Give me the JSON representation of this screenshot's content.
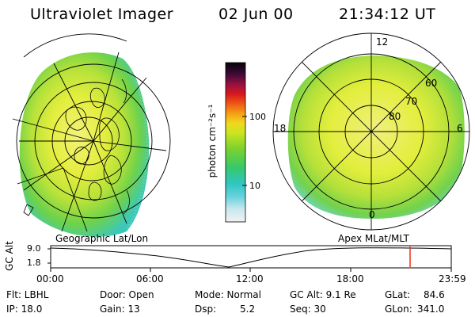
{
  "header": {
    "title": "Ultraviolet Imager",
    "date": "02 Jun 00",
    "time": "21:34:12 UT"
  },
  "colorbar": {
    "unit_label": "photon cm⁻²s⁻¹",
    "tick_labels": [
      "100",
      "10"
    ]
  },
  "left_panel": {
    "caption": "Geographic Lat/Lon"
  },
  "right_panel": {
    "caption": "Apex MLat/MLT",
    "mlt_labels": [
      "12",
      "18",
      "6",
      "0"
    ],
    "mlat_labels": [
      "60",
      "70",
      "80"
    ]
  },
  "altitude_plot": {
    "ylabel": "GC Alt",
    "y_ticks": [
      "9.0",
      "1.8"
    ],
    "x_ticks": [
      "00:00",
      "06:00",
      "12:00",
      "18:00",
      "23:59"
    ],
    "marker_time": "21:34",
    "marker_color": "#e8331f"
  },
  "info": {
    "flt": "Flt: LBHL",
    "ip": "IP: 18.0",
    "door": "Door: Open",
    "gain": "Gain: 13",
    "mode": "Mode: Normal",
    "dsp_label": "Dsp:",
    "dsp_value": "5.2",
    "gc_alt": "GC Alt: 9.1 Re",
    "seq": "Seq: 30",
    "glat_label": "GLat:",
    "glat_value": "84.6",
    "glon_label": "GLon:",
    "glon_value": "341.0"
  }
}
